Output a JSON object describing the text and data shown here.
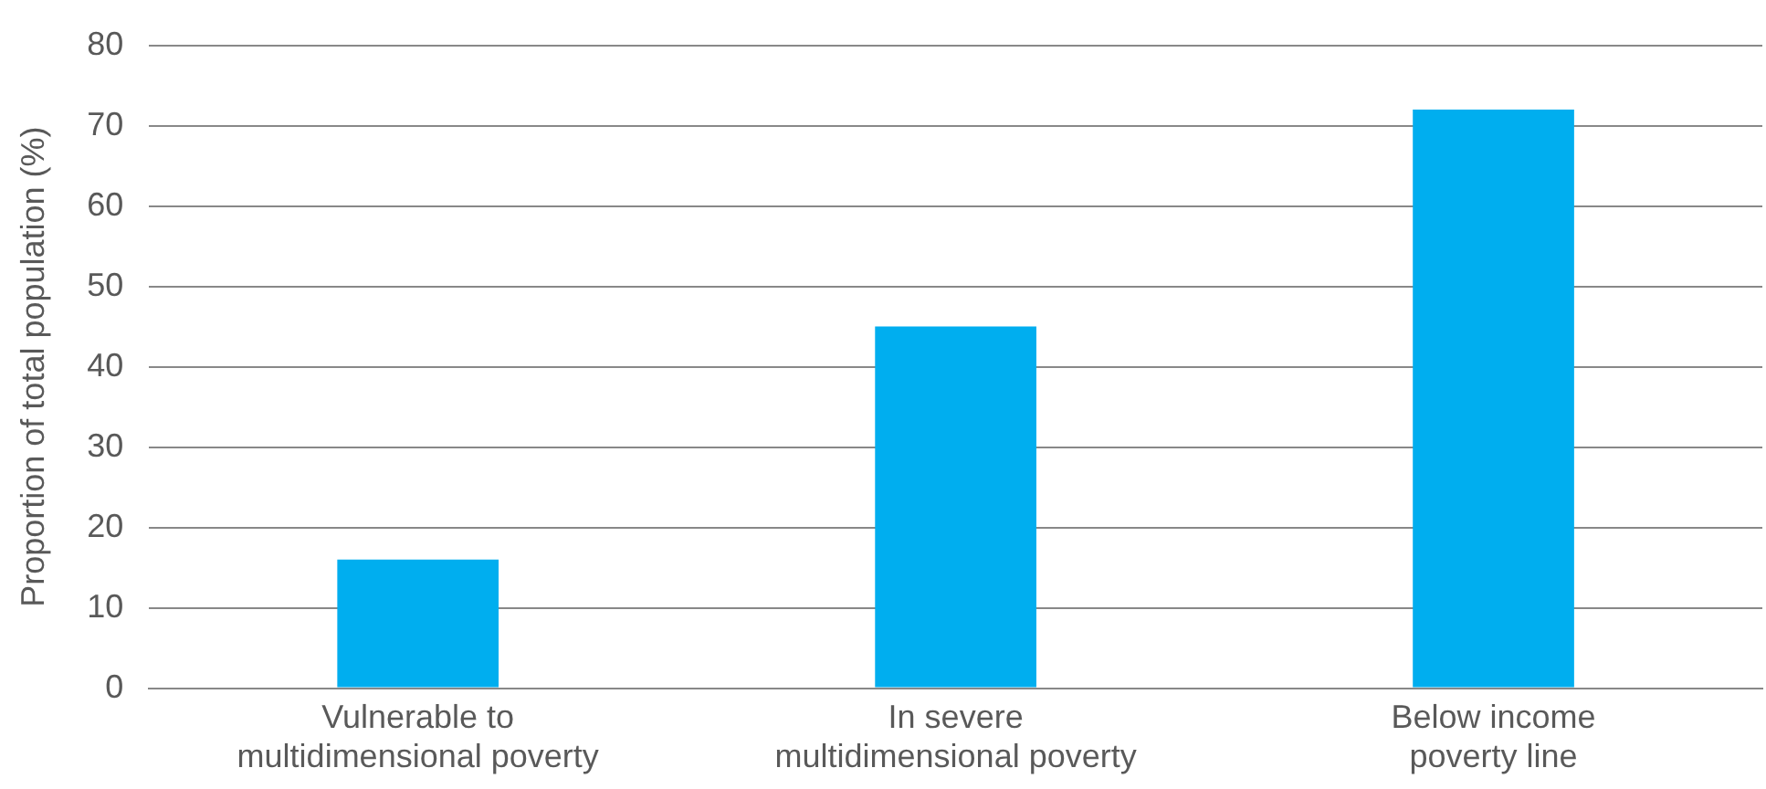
{
  "chart_data": {
    "type": "bar",
    "ylabel": "Proportion of total population (%)",
    "categories": [
      "Vulnerable to multidimensional poverty",
      "In severe multidimensional poverty",
      "Below income poverty line"
    ],
    "values": [
      16,
      45,
      72
    ],
    "color": "#00aeef",
    "ylim": [
      0,
      80
    ],
    "yticks": [
      0,
      10,
      20,
      30,
      40,
      50,
      60,
      70,
      80
    ],
    "grid": "y"
  }
}
